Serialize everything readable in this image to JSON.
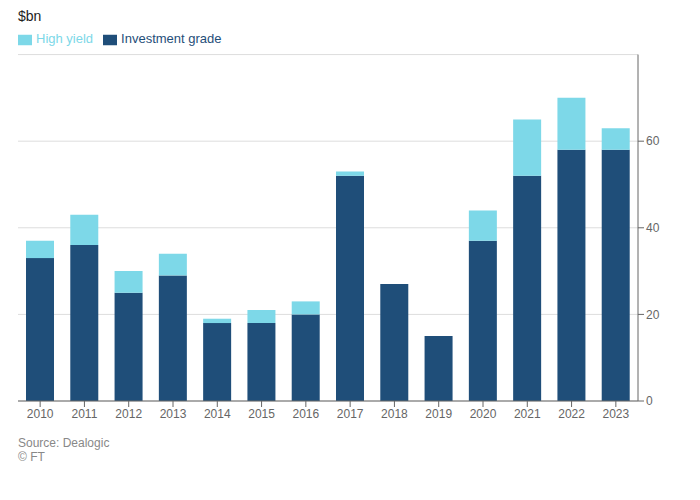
{
  "chart_data": {
    "type": "bar",
    "y_label": "$bn",
    "categories": [
      "2010",
      "2011",
      "2012",
      "2013",
      "2014",
      "2015",
      "2016",
      "2017",
      "2018",
      "2019",
      "2020",
      "2021",
      "2022",
      "2023"
    ],
    "series": [
      {
        "name": "Investment grade",
        "color": "#1f4e79",
        "values": [
          33,
          36,
          25,
          29,
          18,
          18,
          20,
          52,
          27,
          15,
          37,
          52,
          58,
          58
        ]
      },
      {
        "name": "High yield",
        "color": "#7dd8e8",
        "values": [
          4,
          7,
          5,
          5,
          1,
          3,
          3,
          1,
          0,
          0,
          7,
          13,
          12,
          5
        ]
      }
    ],
    "ylim": [
      0,
      80
    ],
    "yticks": [
      0,
      20,
      40,
      60
    ],
    "stacked": true,
    "grid": true,
    "legend": "top",
    "annotations": [
      "Source: Dealogic",
      "© FT"
    ]
  }
}
